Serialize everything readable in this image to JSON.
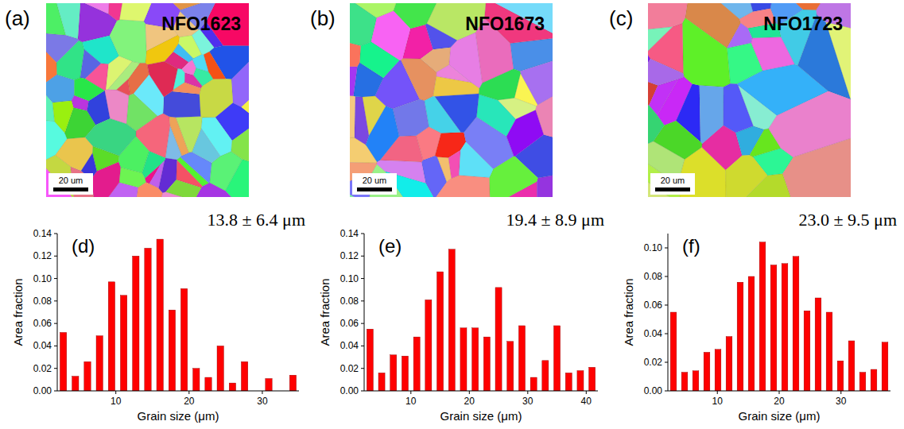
{
  "maps": [
    {
      "panel_label": "(a)",
      "sample": "NFO1623",
      "scale_bar": "20 um"
    },
    {
      "panel_label": "(b)",
      "sample": "NFO1673",
      "scale_bar": "20 um"
    },
    {
      "panel_label": "(c)",
      "sample": "NFO1723",
      "scale_bar": "20 um"
    }
  ],
  "chart_data": [
    {
      "type": "histogram",
      "panel_label": "(d)",
      "title": "13.8 ± 6.4 μm",
      "x_label": "Grain size (μm)",
      "y_label": "Area fraction",
      "color": "#ff0000",
      "bins": [
        2,
        3.65,
        5.3,
        6.95,
        8.6,
        10.25,
        11.9,
        13.55,
        15.2,
        16.85,
        18.5,
        20.15,
        21.8,
        23.45,
        25.1,
        26.75,
        28.4,
        30.05,
        31.7,
        33.35,
        35
      ],
      "values": [
        0.052,
        0.013,
        0.026,
        0.049,
        0.097,
        0.085,
        0.12,
        0.127,
        0.135,
        0.072,
        0.091,
        0.02,
        0.012,
        0.04,
        0.007,
        0.026,
        0,
        0.011,
        0,
        0.014
      ],
      "xlim": [
        2,
        35
      ],
      "xticks": [
        10,
        20,
        30
      ],
      "ylim": [
        0,
        0.14
      ],
      "yticks": [
        {
          "value": 0,
          "label": "0.00"
        },
        {
          "value": 0.02,
          "label": "0.02"
        },
        {
          "value": 0.04,
          "label": "0.04"
        },
        {
          "value": 0.06,
          "label": "0.06"
        },
        {
          "value": 0.08,
          "label": "0.08"
        },
        {
          "value": 0.1,
          "label": "0.10"
        },
        {
          "value": 0.12,
          "label": "0.12"
        },
        {
          "value": 0.14,
          "label": "0.14"
        }
      ],
      "grid": false
    },
    {
      "type": "histogram",
      "panel_label": "(e)",
      "title": "19.4 ± 8.9 μm",
      "x_label": "Grain size (μm)",
      "y_label": "Area fraction",
      "color": "#ff0000",
      "bins": [
        2,
        4,
        6,
        8,
        10,
        12,
        14,
        16,
        18,
        20,
        22,
        24,
        26,
        28,
        30,
        32,
        34,
        36,
        38,
        40,
        42
      ],
      "values": [
        0.055,
        0.016,
        0.032,
        0.031,
        0.048,
        0.081,
        0.106,
        0.126,
        0.056,
        0.056,
        0.048,
        0.092,
        0.044,
        0.058,
        0.012,
        0.027,
        0.058,
        0.016,
        0.018,
        0.021
      ],
      "xlim": [
        2,
        42
      ],
      "xticks": [
        10,
        20,
        30,
        40
      ],
      "ylim": [
        0,
        0.14
      ],
      "yticks": [
        {
          "value": 0,
          "label": "0.00"
        },
        {
          "value": 0.02,
          "label": "0.02"
        },
        {
          "value": 0.04,
          "label": "0.04"
        },
        {
          "value": 0.06,
          "label": "0.06"
        },
        {
          "value": 0.08,
          "label": "0.08"
        },
        {
          "value": 0.1,
          "label": "0.10"
        },
        {
          "value": 0.12,
          "label": "0.12"
        },
        {
          "value": 0.14,
          "label": "0.14"
        }
      ],
      "grid": false
    },
    {
      "type": "histogram",
      "panel_label": "(f)",
      "title": "23.0 ± 9.5 μm",
      "x_label": "Grain size (μm)",
      "y_label": "Area fraction",
      "color": "#ff0000",
      "bins": [
        2,
        3.8,
        5.6,
        7.4,
        9.2,
        11,
        12.8,
        14.6,
        16.4,
        18.2,
        20,
        21.8,
        23.6,
        25.4,
        27.2,
        29,
        30.8,
        32.6,
        34.4,
        36.2,
        38
      ],
      "values": [
        0.055,
        0.013,
        0.014,
        0.027,
        0.029,
        0.038,
        0.076,
        0.08,
        0.104,
        0.088,
        0.089,
        0.094,
        0.056,
        0.065,
        0.055,
        0.021,
        0.035,
        0.013,
        0.015,
        0.034
      ],
      "xlim": [
        2,
        38
      ],
      "xticks": [
        10,
        20,
        30
      ],
      "ylim": [
        0,
        0.11
      ],
      "yticks": [
        {
          "value": 0,
          "label": "0.00"
        },
        {
          "value": 0.02,
          "label": "0.02"
        },
        {
          "value": 0.04,
          "label": "0.04"
        },
        {
          "value": 0.06,
          "label": "0.06"
        },
        {
          "value": 0.08,
          "label": "0.08"
        },
        {
          "value": 0.1,
          "label": "0.10"
        }
      ],
      "grid": false
    }
  ]
}
